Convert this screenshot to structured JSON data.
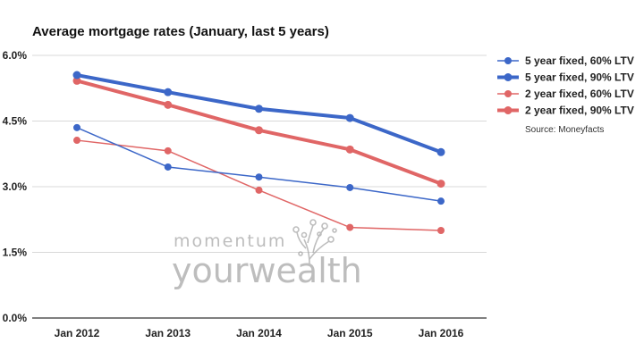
{
  "chart_data": {
    "type": "line",
    "title": "Average mortgage rates (January, last 5 years)",
    "xlabel": "",
    "ylabel": "",
    "categories": [
      "Jan 2012",
      "Jan 2013",
      "Jan 2014",
      "Jan 2015",
      "Jan 2016"
    ],
    "y_ticks": [
      "0.0%",
      "1.5%",
      "3.0%",
      "4.5%",
      "6.0%"
    ],
    "ylim": [
      0,
      6
    ],
    "grid": true,
    "legend_position": "right",
    "series": [
      {
        "name": "5 year fixed, 60% LTV",
        "color": "#3c67c8",
        "values": [
          4.35,
          3.45,
          3.22,
          2.98,
          2.67
        ]
      },
      {
        "name": "5 year fixed, 90% LTV",
        "color": "#3c67c8",
        "values": [
          5.55,
          5.16,
          4.78,
          4.57,
          3.79
        ]
      },
      {
        "name": "2 year fixed, 60% LTV",
        "color": "#e06666",
        "values": [
          4.06,
          3.82,
          2.92,
          2.07,
          2.0
        ]
      },
      {
        "name": "2 year fixed, 90% LTV",
        "color": "#e06666",
        "values": [
          5.42,
          4.87,
          4.29,
          3.85,
          3.07
        ]
      }
    ],
    "source": "Source: Moneyfacts"
  },
  "watermark": {
    "line1": "momentum",
    "line2": "yourwealth",
    "icon": "tree-logo-icon"
  }
}
